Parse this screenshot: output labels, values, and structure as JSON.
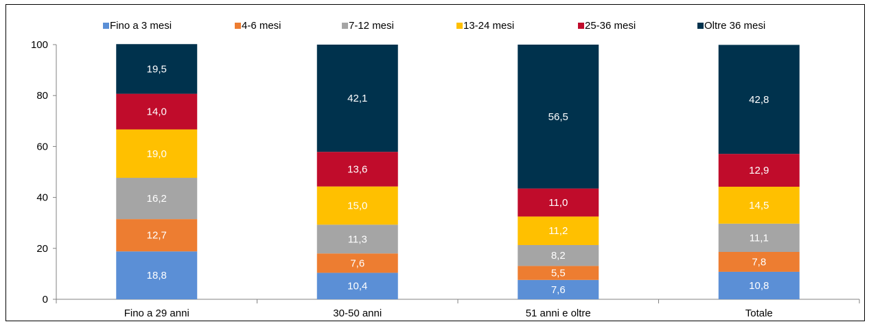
{
  "chart_data": {
    "type": "bar",
    "stacked": true,
    "categories": [
      "Fino a 29 anni",
      "30-50 anni",
      "51 anni e oltre",
      "Totale"
    ],
    "series": [
      {
        "name": "Fino a 3 mesi",
        "color": "#5B8FD6",
        "values": [
          18.8,
          10.4,
          7.6,
          10.8
        ]
      },
      {
        "name": "4-6 mesi",
        "color": "#ED7D31",
        "values": [
          12.7,
          7.6,
          5.5,
          7.8
        ]
      },
      {
        "name": "7-12 mesi",
        "color": "#A5A5A5",
        "values": [
          16.2,
          11.3,
          8.2,
          11.1
        ]
      },
      {
        "name": "13-24 mesi",
        "color": "#FFC000",
        "values": [
          19.0,
          15.0,
          11.2,
          14.5
        ]
      },
      {
        "name": "25-36 mesi",
        "color": "#C00C2B",
        "values": [
          14.0,
          13.6,
          11.0,
          12.9
        ]
      },
      {
        "name": "Oltre 36 mesi",
        "color": "#00324D",
        "values": [
          19.5,
          42.1,
          56.5,
          42.8
        ]
      }
    ],
    "data_labels": [
      [
        "18,8",
        "10,4",
        "7,6",
        "10,8"
      ],
      [
        "12,7",
        "7,6",
        "5,5",
        "7,8"
      ],
      [
        "16,2",
        "11,3",
        "8,2",
        "11,1"
      ],
      [
        "19,0",
        "15,0",
        "11,2",
        "14,5"
      ],
      [
        "14,0",
        "13,6",
        "11,0",
        "12,9"
      ],
      [
        "19,5",
        "42,1",
        "56,5",
        "42,8"
      ]
    ],
    "ylim": [
      0,
      100
    ],
    "yticks": [
      0,
      20,
      40,
      60,
      80,
      100
    ],
    "title": "",
    "xlabel": "",
    "ylabel": "",
    "legend": "top",
    "grid": false
  }
}
